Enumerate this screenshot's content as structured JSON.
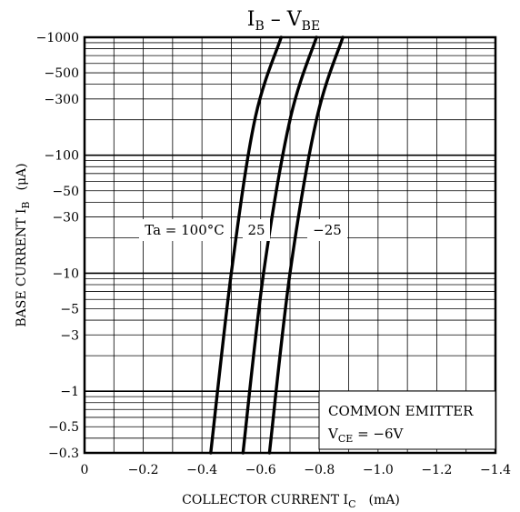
{
  "chart_data": {
    "type": "line",
    "title": {
      "main": "I",
      "sub1": "B",
      "dash": " – V",
      "sub2": "BE"
    },
    "xlabel": {
      "main": "COLLECTOR CURRENT  I",
      "sub": "C",
      "unit": "(mA)"
    },
    "ylabel": {
      "main": "BASE CURRENT  I",
      "sub": "B",
      "unit": "(μA)"
    },
    "x_scale": "linear",
    "y_scale": "log",
    "xlim": [
      0,
      -1.4
    ],
    "ylim": [
      -0.3,
      -1000
    ],
    "grid": true,
    "x_ticks": [
      0,
      -0.2,
      -0.4,
      -0.6,
      -0.8,
      -1.0,
      -1.2,
      -1.4
    ],
    "x_tick_labels": [
      "0",
      "−0.2",
      "−0.4",
      "−0.6",
      "−0.8",
      "−1.0",
      "−1.2",
      "−1.4"
    ],
    "y_ticks": [
      -1000,
      -500,
      -300,
      -100,
      -50,
      -30,
      -10,
      -5,
      -3,
      -1,
      -0.5,
      -0.3
    ],
    "y_tick_labels": [
      "−1000",
      "−500",
      "−300",
      "−100",
      "−50",
      "−30",
      "−10",
      "−5",
      "−3",
      "−1",
      "−0.5",
      "−0.3"
    ],
    "series": [
      {
        "name": "Ta = 100°C",
        "x": [
          -0.43,
          -0.5,
          -0.58,
          -0.67
        ],
        "y": [
          -0.3,
          -10,
          -200,
          -1000
        ]
      },
      {
        "name": "25",
        "x": [
          -0.54,
          -0.61,
          -0.7,
          -0.79
        ],
        "y": [
          -0.3,
          -10,
          -200,
          -1000
        ]
      },
      {
        "name": "−25",
        "x": [
          -0.63,
          -0.7,
          -0.79,
          -0.88
        ],
        "y": [
          -0.3,
          -10,
          -200,
          -1000
        ]
      }
    ],
    "annotations": {
      "line1": "COMMON EMITTER",
      "line2_main": "V",
      "line2_sub": "CE",
      "line2_value": " = −6V"
    }
  }
}
